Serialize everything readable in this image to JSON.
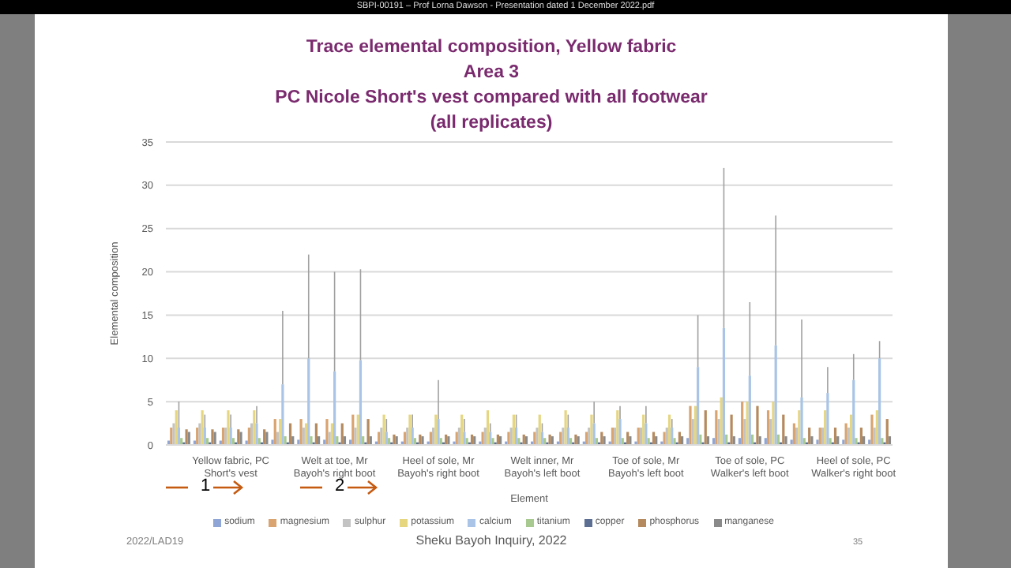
{
  "chart_data": {
    "type": "bar",
    "title": "Trace elemental composition, Yellow fabric",
    "subtitle": "Area 3\nPC Nicole Short's vest compared with  all footwear\n(all replicates)",
    "xlabel": "Element",
    "ylabel": "Elemental composition",
    "categories": [
      null,
      null,
      "Yellow fabric, PC Short's vest",
      null,
      null,
      null,
      "Welt at toe, Mr Bayoh's right boot",
      null,
      null,
      null,
      "Heel of sole, Mr Bayoh's right boot",
      null,
      null,
      null,
      "Welt inner, Mr Bayoh's left boot",
      null,
      null,
      null,
      "Toe of sole, Mr Bayoh's left boot",
      null,
      null,
      null,
      "Toe of sole, PC Walker's left boot",
      null,
      null,
      null,
      "Heel of sole, PC Walker's right boot",
      null
    ],
    "series": [
      {
        "name": "sodium",
        "color": "#8ea5d6",
        "values": [
          0.5,
          0.5,
          0.5,
          0.5,
          0.6,
          0.6,
          0.6,
          0.6,
          0.4,
          0.4,
          0.4,
          0.4,
          0.4,
          0.4,
          0.4,
          0.4,
          0.4,
          0.4,
          0.4,
          0.4,
          0.8,
          0.8,
          0.8,
          0.8,
          0.6,
          0.6,
          0.6,
          0.6
        ]
      },
      {
        "name": "magnesium",
        "color": "#d9a46f",
        "values": [
          2,
          2,
          2,
          2,
          3,
          3,
          3,
          3.5,
          1.5,
          1.5,
          1.5,
          1.5,
          1.5,
          1.5,
          1.5,
          1.5,
          1.5,
          2,
          2,
          1.5,
          4.5,
          4,
          5,
          4,
          2.5,
          2,
          2.5,
          3.5
        ]
      },
      {
        "name": "sulphur",
        "color": "#c3c3c3",
        "values": [
          2.5,
          2.5,
          2,
          2.5,
          1.5,
          2,
          1.5,
          2,
          2,
          2,
          2,
          2,
          2,
          2,
          2,
          2,
          2,
          2,
          2,
          2,
          3,
          3,
          3,
          3,
          2,
          2,
          2,
          2
        ]
      },
      {
        "name": "potassium",
        "color": "#e6d680",
        "values": [
          4,
          4,
          4,
          4,
          3,
          2.5,
          2.5,
          3.5,
          3.5,
          3.5,
          3.5,
          3.5,
          4,
          3.5,
          3.5,
          4,
          3.5,
          4,
          3.5,
          3.5,
          4.5,
          5.5,
          5,
          5,
          4,
          4,
          3.5,
          4
        ]
      },
      {
        "name": "calcium",
        "color": "#a9c4e6",
        "values": [
          2,
          2,
          2,
          2.5,
          7,
          10,
          8.5,
          9.8,
          1.5,
          2,
          3,
          1.5,
          1.5,
          2,
          1.5,
          2,
          2.5,
          3,
          2.5,
          2,
          9,
          13.5,
          8,
          11.5,
          5.5,
          6,
          7.5,
          10
        ],
        "errors": [
          [
            2,
            5
          ],
          [
            2,
            3.5
          ],
          [
            2,
            3.5
          ],
          [
            2.5,
            4.5
          ],
          [
            7,
            15.5
          ],
          [
            10,
            22
          ],
          [
            8.5,
            20
          ],
          [
            9.8,
            20.3
          ],
          [
            1.5,
            3
          ],
          [
            2,
            3.5
          ],
          [
            3,
            7.5
          ],
          [
            1.5,
            3
          ],
          [
            1.5,
            2.5
          ],
          [
            2,
            3.5
          ],
          [
            1.5,
            2.5
          ],
          [
            2,
            3.5
          ],
          [
            2.5,
            5
          ],
          [
            3,
            4.5
          ],
          [
            2.5,
            4.5
          ],
          [
            2,
            3
          ],
          [
            9,
            15
          ],
          [
            13.5,
            32
          ],
          [
            8,
            16.5
          ],
          [
            11.5,
            26.5
          ],
          [
            5.5,
            14.5
          ],
          [
            6,
            9
          ],
          [
            7.5,
            10.5
          ],
          [
            10,
            12
          ]
        ]
      },
      {
        "name": "titanium",
        "color": "#a8c98f",
        "values": [
          0.8,
          0.8,
          0.8,
          0.8,
          1,
          1,
          1,
          1,
          0.8,
          0.8,
          0.8,
          0.8,
          0.8,
          0.8,
          0.8,
          0.8,
          0.8,
          0.8,
          0.8,
          0.8,
          1.2,
          1.2,
          1.2,
          1.2,
          0.8,
          0.8,
          0.8,
          0.8
        ]
      },
      {
        "name": "copper",
        "color": "#5c6f93",
        "values": [
          0.3,
          0.3,
          0.3,
          0.3,
          0.3,
          0.3,
          0.3,
          0.3,
          0.3,
          0.3,
          0.3,
          0.3,
          0.3,
          0.3,
          0.3,
          0.3,
          0.3,
          0.3,
          0.3,
          0.3,
          0.3,
          0.3,
          0.3,
          0.3,
          0.3,
          0.3,
          0.3,
          0.3
        ]
      },
      {
        "name": "phosphorus",
        "color": "#b58a5e",
        "values": [
          1.8,
          1.8,
          1.8,
          1.8,
          2.5,
          2.5,
          2.5,
          3,
          1.2,
          1.2,
          1.2,
          1.2,
          1.2,
          1.2,
          1.2,
          1.2,
          1.5,
          1.5,
          1.5,
          1.5,
          4,
          3.5,
          4.5,
          3.5,
          2,
          2,
          2,
          3
        ]
      },
      {
        "name": "manganese",
        "color": "#8a8a8a",
        "values": [
          1.5,
          1.5,
          1.5,
          1.5,
          1,
          1,
          1,
          1,
          1,
          1,
          1,
          1,
          1,
          1,
          1,
          1,
          1,
          1,
          1,
          1,
          1,
          1,
          1,
          1,
          1,
          1,
          1,
          1
        ]
      }
    ],
    "ylim": [
      0,
      35
    ],
    "yticks": [
      0,
      5,
      10,
      15,
      20,
      25,
      30,
      35
    ],
    "grid": "y",
    "legend": "bottom",
    "annotations": [
      "SBPI-00191 – Prof Lorna Dawson - Presentation dated 1 December 2022.pdf",
      "1",
      "2",
      "2022/LAD19",
      "Sheku Bayoh Inquiry, 2022",
      "35"
    ]
  }
}
